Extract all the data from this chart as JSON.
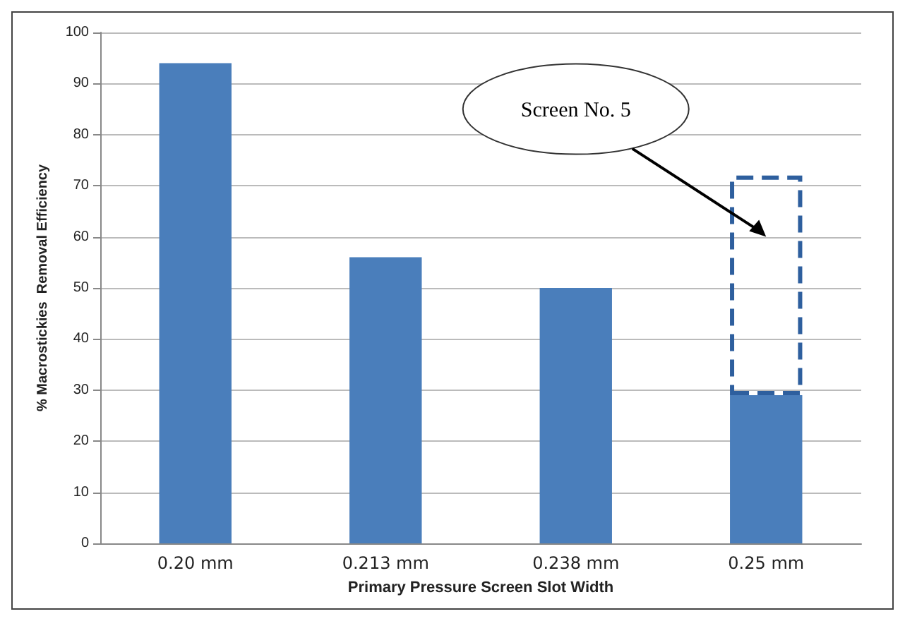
{
  "chart_data": {
    "type": "bar",
    "xlabel": "Primary Pressure Screen Slot Width",
    "ylabel": "% Macrostickies  Removal Efficiency",
    "categories": [
      "0.20 mm",
      "0.213 mm",
      "0.238 mm",
      "0.25 mm"
    ],
    "stacked": true,
    "series": [
      {
        "color": "#4a7ebb",
        "values": [
          94,
          56,
          50,
          29
        ]
      },
      {
        "color": "#2e5f9e",
        "values": [
          null,
          null,
          null,
          43
        ],
        "line_style": "dashed"
      }
    ],
    "ylim": [
      0,
      100
    ],
    "yticks": [
      0,
      10,
      20,
      30,
      40,
      50,
      60,
      70,
      80,
      90,
      100
    ],
    "grid": "y",
    "annotations": [
      "Screen No. 5"
    ]
  }
}
